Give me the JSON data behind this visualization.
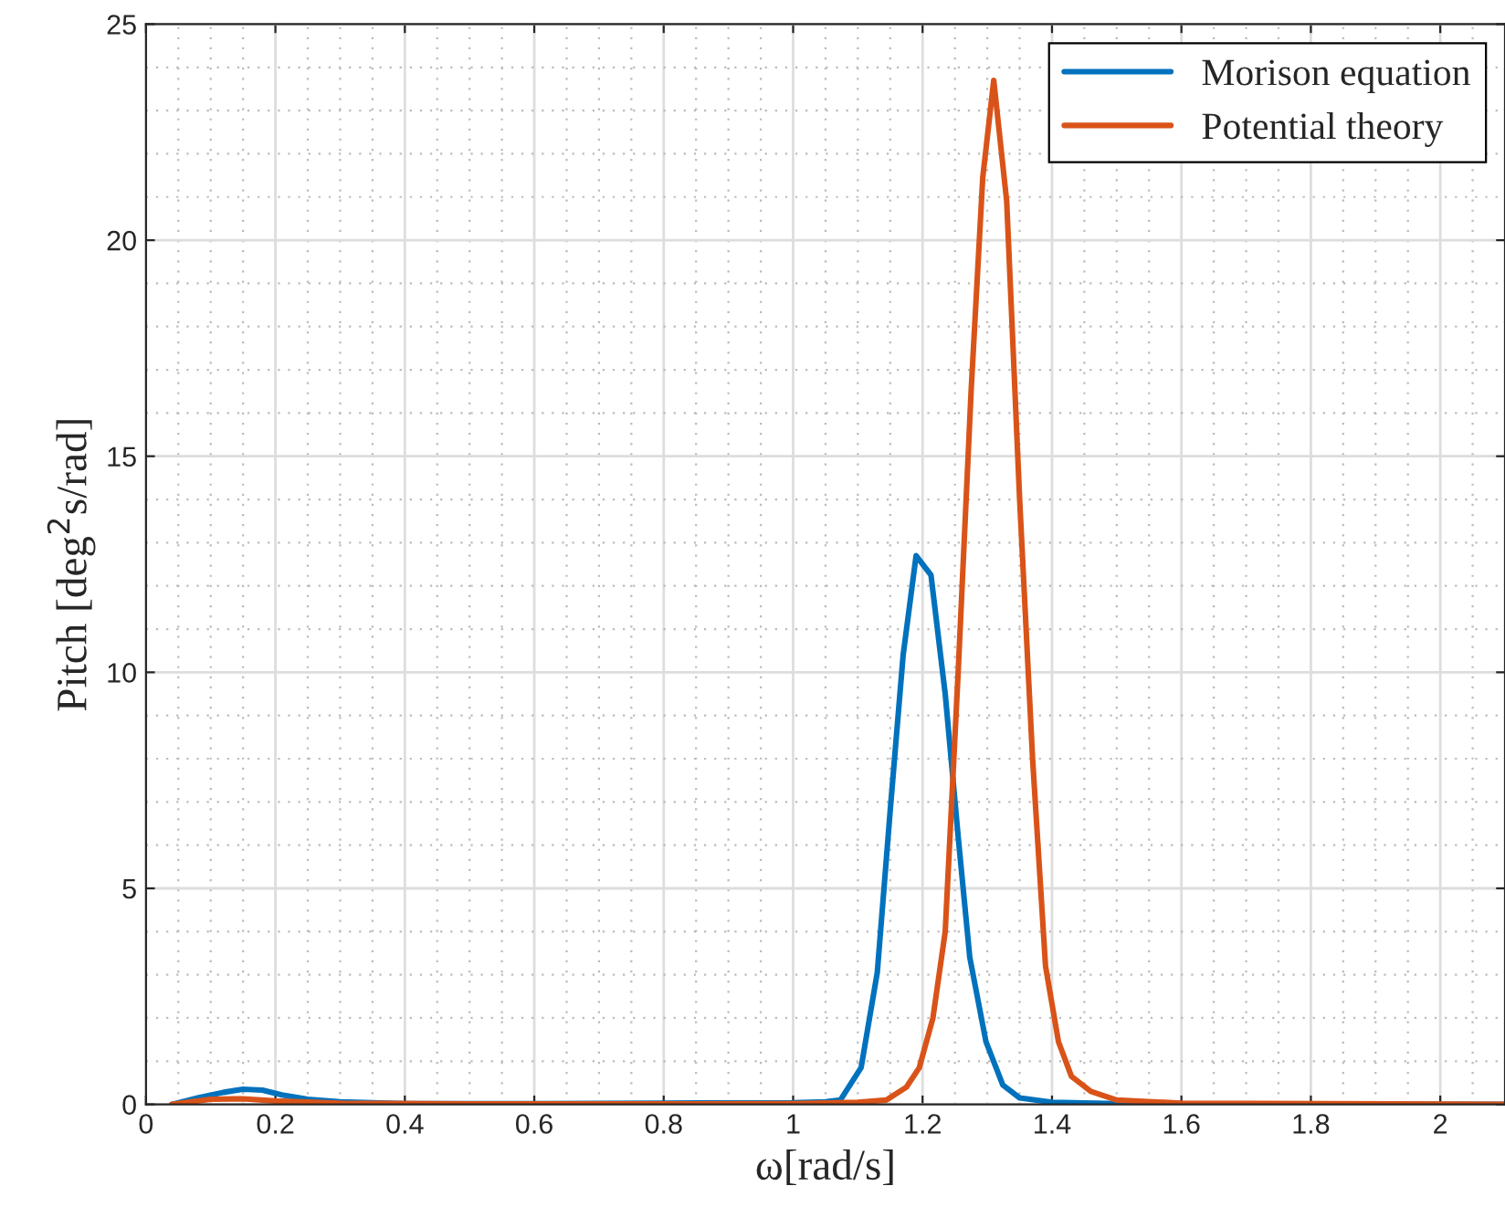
{
  "chart_data": {
    "type": "line",
    "xlabel": "ω[rad/s]",
    "ylabel": "Pitch [deg$^{2}$s/rad]",
    "series": [
      {
        "name": "Morison equation",
        "color": "#0072bd",
        "x": [
          0.04,
          0.08,
          0.12,
          0.15,
          0.18,
          0.21,
          0.25,
          0.3,
          0.4,
          0.6,
          0.8,
          1.0,
          1.05,
          1.073,
          1.105,
          1.13,
          1.15,
          1.17,
          1.19,
          1.213,
          1.235,
          1.255,
          1.273,
          1.298,
          1.324,
          1.35,
          1.4,
          1.5,
          1.6,
          2.1
        ],
        "values": [
          0,
          0.15,
          0.28,
          0.35,
          0.33,
          0.22,
          0.12,
          0.06,
          0.02,
          0.02,
          0.03,
          0.04,
          0.06,
          0.1,
          0.85,
          3.05,
          6.8,
          10.4,
          12.7,
          12.25,
          9.5,
          6.2,
          3.4,
          1.45,
          0.45,
          0.15,
          0.05,
          0.02,
          0.01,
          0
        ]
      },
      {
        "name": "Potential theory",
        "color": "#d95319",
        "x": [
          0.04,
          0.1,
          0.15,
          0.2,
          0.3,
          0.5,
          0.8,
          1.0,
          1.1,
          1.144,
          1.175,
          1.195,
          1.216,
          1.235,
          1.255,
          1.275,
          1.293,
          1.31,
          1.33,
          1.35,
          1.37,
          1.39,
          1.41,
          1.43,
          1.46,
          1.5,
          1.6,
          2.1
        ],
        "values": [
          0,
          0.12,
          0.13,
          0.08,
          0.03,
          0.01,
          0.01,
          0.02,
          0.05,
          0.1,
          0.4,
          0.85,
          2.0,
          4.0,
          10.0,
          16.5,
          21.45,
          23.7,
          20.9,
          14.0,
          8.0,
          3.2,
          1.45,
          0.65,
          0.3,
          0.1,
          0.03,
          0
        ]
      }
    ],
    "xlim": [
      0,
      2.1
    ],
    "xticks": [
      0,
      0.2,
      0.4,
      0.6,
      0.8,
      {
        "value": 1,
        "label": "1"
      },
      1.2,
      1.4,
      1.6,
      1.8,
      {
        "value": 2,
        "label": "2"
      }
    ],
    "ylim": [
      0,
      25
    ],
    "yticks": [
      0,
      5,
      10,
      15,
      20,
      25
    ],
    "grid": true,
    "legend": "top right",
    "marker": "none",
    "line_style": "solid"
  }
}
